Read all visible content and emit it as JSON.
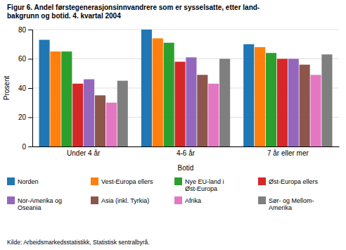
{
  "chart_data": {
    "type": "bar",
    "title": "Figur 6. Andel førstegenerasjonsinnvandrere som er sysselsatte, etter land-\nbakgrunn og botid. 4. kvartal 2004",
    "y_label": "Prosent",
    "x_label": "Botid",
    "annotations": [
      "Kilde: Arbeidsmarkedsstatistikk, Statistisk sentralbyrå."
    ],
    "categories": [
      "Under 4 år",
      "4-6 år",
      "7 år eller mer"
    ],
    "series": [
      {
        "name": "Norden",
        "values": [
          73,
          80,
          70
        ]
      },
      {
        "name": "Vest-Europa ellers",
        "values": [
          65,
          74,
          68
        ]
      },
      {
        "name": "Nye EU-land i\nØst-Europa",
        "values": [
          65,
          71,
          64
        ]
      },
      {
        "name": "Øst-Europa ellers",
        "values": [
          43,
          58,
          60
        ]
      },
      {
        "name": "Nor-Amerika og\nOseania",
        "values": [
          46,
          61,
          60
        ]
      },
      {
        "name": "Asia (inkl. Tyrkia)",
        "values": [
          35,
          49,
          56
        ]
      },
      {
        "name": "Afrika",
        "values": [
          30,
          43,
          49
        ]
      },
      {
        "name": "Sør- og Mellom-\nAmerika",
        "values": [
          45,
          60,
          63
        ]
      }
    ],
    "ylim": [
      0,
      80
    ],
    "yticks": [
      0,
      20,
      40,
      60,
      80
    ],
    "grid": true,
    "legend": "bottom"
  }
}
